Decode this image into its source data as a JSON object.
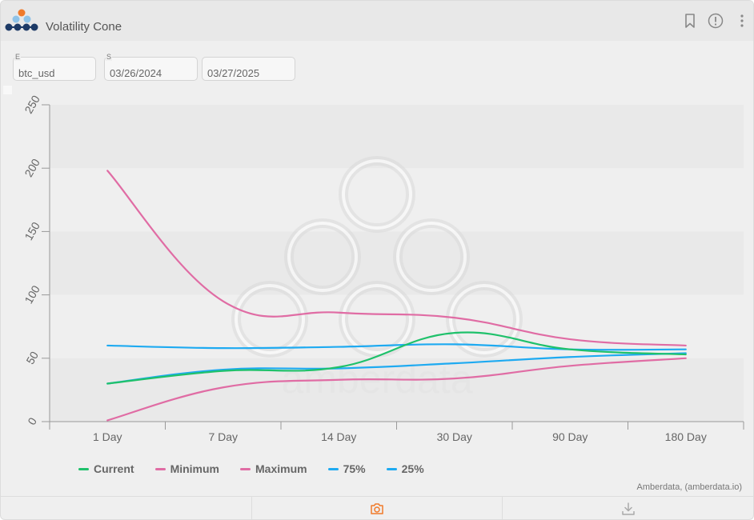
{
  "header": {
    "title": "Volatility Cone"
  },
  "controls": {
    "asset_label": "E",
    "asset_value": "btc_usd",
    "start_label": "S",
    "start_value": "03/26/2024",
    "end_value": "03/27/2025"
  },
  "watermark": "amberdata",
  "credit": "Amberdata, (amberdata.io)",
  "colors": {
    "current": "#1fc16b",
    "minimum": "#e06ca4",
    "maximum": "#e06ca4",
    "p75": "#1eaaf1",
    "p25": "#1eaaf1",
    "accent": "#f07a2a"
  },
  "icons": {
    "bookmark": "bookmark-icon",
    "info": "info-icon",
    "menu": "more-vertical-icon",
    "camera": "camera-icon",
    "download": "download-icon"
  },
  "chart_data": {
    "type": "line",
    "title": "",
    "xlabel": "",
    "ylabel": "",
    "categories": [
      "1 Day",
      "7 Day",
      "14 Day",
      "30 Day",
      "90 Day",
      "180 Day"
    ],
    "ylim": [
      0,
      250
    ],
    "yticks": [
      0,
      50,
      100,
      150,
      200,
      250
    ],
    "grid": "alternating-bands",
    "legend": "bottom",
    "series": [
      {
        "name": "Current",
        "key": "current",
        "values": [
          30,
          40,
          43,
          70,
          57,
          53
        ]
      },
      {
        "name": "Minimum",
        "key": "minimum",
        "values": [
          1,
          27,
          33,
          34,
          44,
          50
        ]
      },
      {
        "name": "Maximum",
        "key": "maximum",
        "values": [
          198,
          95,
          86,
          82,
          65,
          60
        ]
      },
      {
        "name": "75%",
        "key": "p75",
        "values": [
          60,
          58,
          59,
          61,
          57,
          57
        ]
      },
      {
        "name": "25%",
        "key": "p25",
        "values": [
          30,
          41,
          42,
          46,
          51,
          54
        ]
      }
    ]
  }
}
